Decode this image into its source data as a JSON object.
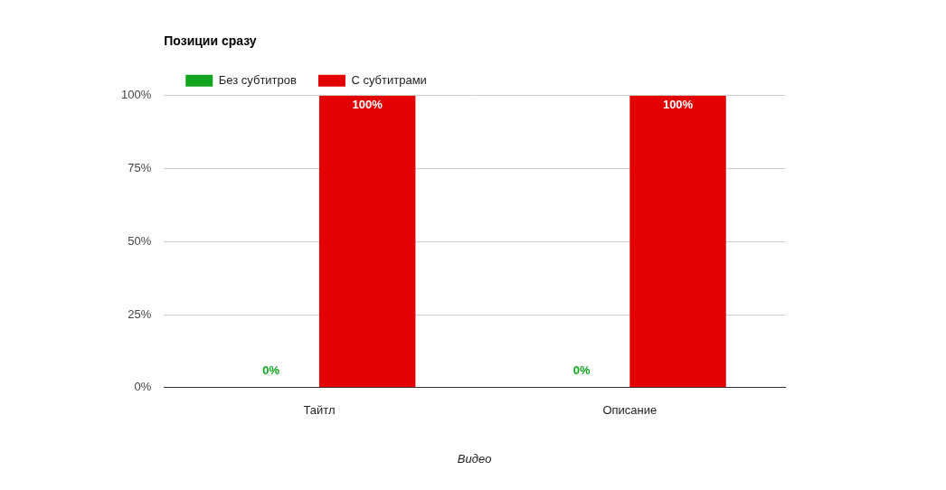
{
  "chart_data": {
    "type": "bar",
    "title": "Позиции сразу",
    "x_label": "Видео",
    "categories": [
      "Тайтл",
      "Описание"
    ],
    "series": [
      {
        "name": "Без субтитров",
        "color": "#13a520",
        "values": [
          0,
          0
        ],
        "value_labels": [
          "0%",
          "0%"
        ]
      },
      {
        "name": "С субтитрами",
        "color": "#e30000",
        "values": [
          100,
          100
        ],
        "value_labels": [
          "100%",
          "100%"
        ]
      }
    ],
    "ylim": [
      0,
      100
    ],
    "yticks": [
      {
        "value": 0,
        "label": "0%"
      },
      {
        "value": 25,
        "label": "25%"
      },
      {
        "value": 50,
        "label": "50%"
      },
      {
        "value": 75,
        "label": "75%"
      },
      {
        "value": 100,
        "label": "100%"
      }
    ],
    "grid": true,
    "legend": "top-left",
    "data_labels": true
  }
}
